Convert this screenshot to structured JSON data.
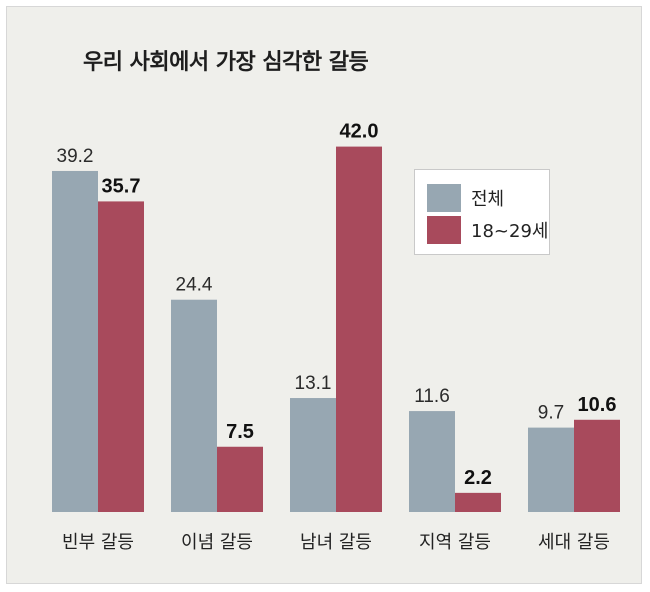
{
  "chart_data": {
    "type": "bar",
    "title": "우리 사회에서 가장 심각한 갈등",
    "categories": [
      "빈부 갈등",
      "이념 갈등",
      "남녀 갈등",
      "지역 갈등",
      "세대 갈등"
    ],
    "series": [
      {
        "name": "전체",
        "color": "#97a7b2",
        "values": [
          39.2,
          24.4,
          13.1,
          11.6,
          9.7
        ],
        "labels": [
          "39.2",
          "24.4",
          "13.1",
          "11.6",
          "9.7"
        ]
      },
      {
        "name": "18~29세",
        "color": "#a84a5c",
        "values": [
          35.7,
          7.5,
          42.0,
          2.2,
          10.6
        ],
        "labels": [
          "35.7",
          "7.5",
          "42.0",
          "2.2",
          "10.6"
        ]
      }
    ],
    "ylim": [
      0,
      45
    ],
    "xlabel": "",
    "ylabel": "",
    "grid": false,
    "legend_position": "top-right"
  }
}
